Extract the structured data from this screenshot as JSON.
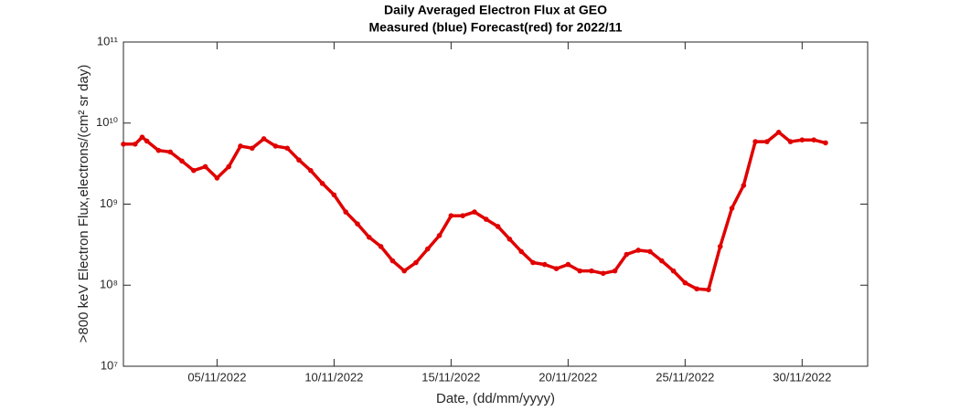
{
  "chart_data": {
    "type": "scatter",
    "title": "Daily Averaged Electron Flux at GEO",
    "subtitle": "Measured (blue) Forecast(red) for 2022/11",
    "x_label": "Date, (dd/mm/yyyy)",
    "y_label": ">800 keV Electron Flux,electrons/(cm² sr day)",
    "log_y": true,
    "grid": false,
    "color": "#e00000",
    "xlim": [
      1,
      32.8
    ],
    "xticks": [
      {
        "value": 5,
        "label": "05/11/2022"
      },
      {
        "value": 10,
        "label": "10/11/2022"
      },
      {
        "value": 15,
        "label": "15/11/2022"
      },
      {
        "value": 20,
        "label": "20/11/2022"
      },
      {
        "value": 25,
        "label": "25/11/2022"
      },
      {
        "value": 30,
        "label": "30/11/2022"
      }
    ],
    "ylim": [
      10000000,
      100000000000
    ],
    "yticks": [
      {
        "value": 10000000,
        "label": "10⁷"
      },
      {
        "value": 100000000,
        "label": "10⁸"
      },
      {
        "value": 1000000000,
        "label": "10⁹"
      },
      {
        "value": 10000000000,
        "label": "10¹⁰"
      },
      {
        "value": 100000000000,
        "label": "10¹¹"
      }
    ],
    "x": [
      1,
      1.5,
      1.8,
      2,
      2.5,
      3,
      3.5,
      4,
      4.5,
      5,
      5.5,
      6,
      6.5,
      7,
      7.5,
      8,
      8.5,
      9,
      9.5,
      10,
      10.5,
      11,
      11.5,
      12,
      12.5,
      13,
      13.5,
      14,
      14.5,
      15,
      15.5,
      16,
      16.5,
      17,
      17.5,
      18,
      18.5,
      19,
      19.5,
      20,
      20.5,
      21,
      21.5,
      22,
      22.5,
      23,
      23.5,
      24,
      24.5,
      25,
      25.5,
      26,
      26.5,
      27,
      27.5,
      28,
      28.5,
      29,
      29.5,
      30,
      30.5,
      31
    ],
    "values": [
      5500000000,
      5500000000,
      6700000000,
      6000000000,
      4600000000,
      4400000000,
      3400000000,
      2600000000,
      2900000000,
      2100000000,
      2900000000,
      5200000000,
      4900000000,
      6400000000,
      5200000000,
      4900000000,
      3500000000,
      2600000000,
      1800000000,
      1300000000,
      800000000,
      570000000,
      390000000,
      300000000,
      200000000,
      150000000,
      190000000,
      280000000,
      410000000,
      720000000,
      720000000,
      800000000,
      650000000,
      530000000,
      370000000,
      260000000,
      190000000,
      180000000,
      160000000,
      180000000,
      150000000,
      150000000,
      140000000,
      150000000,
      240000000,
      270000000,
      260000000,
      200000000,
      150000000,
      107000000,
      90000000,
      88000000,
      300000000,
      890000000,
      1700000000,
      5900000000,
      5900000000,
      7700000000,
      5900000000,
      6200000000,
      6200000000,
      5700000000
    ]
  }
}
